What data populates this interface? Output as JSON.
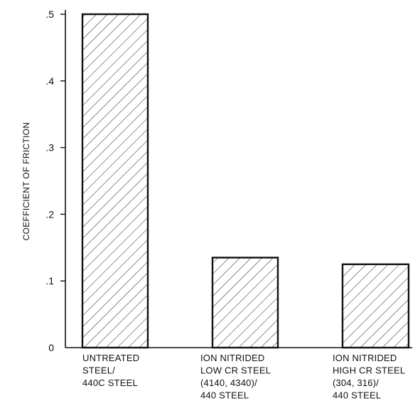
{
  "chart_data": {
    "type": "bar",
    "ylabel": "COEFFICIENT OF FRICTION",
    "ylim": [
      0,
      0.5
    ],
    "yticks": [
      {
        "value": 0,
        "label": "0"
      },
      {
        "value": 0.1,
        "label": ".1"
      },
      {
        "value": 0.2,
        "label": ".2"
      },
      {
        "value": 0.3,
        "label": ".3"
      },
      {
        "value": 0.4,
        "label": ".4"
      },
      {
        "value": 0.5,
        "label": ".5"
      }
    ],
    "categories": [
      [
        "UNTREATED",
        "STEEL/",
        "440C  STEEL"
      ],
      [
        "ION NITRIDED",
        "LOW CR STEEL",
        "(4140, 4340)/",
        "440 STEEL"
      ],
      [
        "ION NITRIDED",
        "HIGH CR STEEL",
        "(304, 316)/",
        "440 STEEL"
      ]
    ],
    "values": [
      0.5,
      0.135,
      0.125
    ],
    "fill_pattern": "diagonal-hatch",
    "bar_color": "#111111"
  }
}
